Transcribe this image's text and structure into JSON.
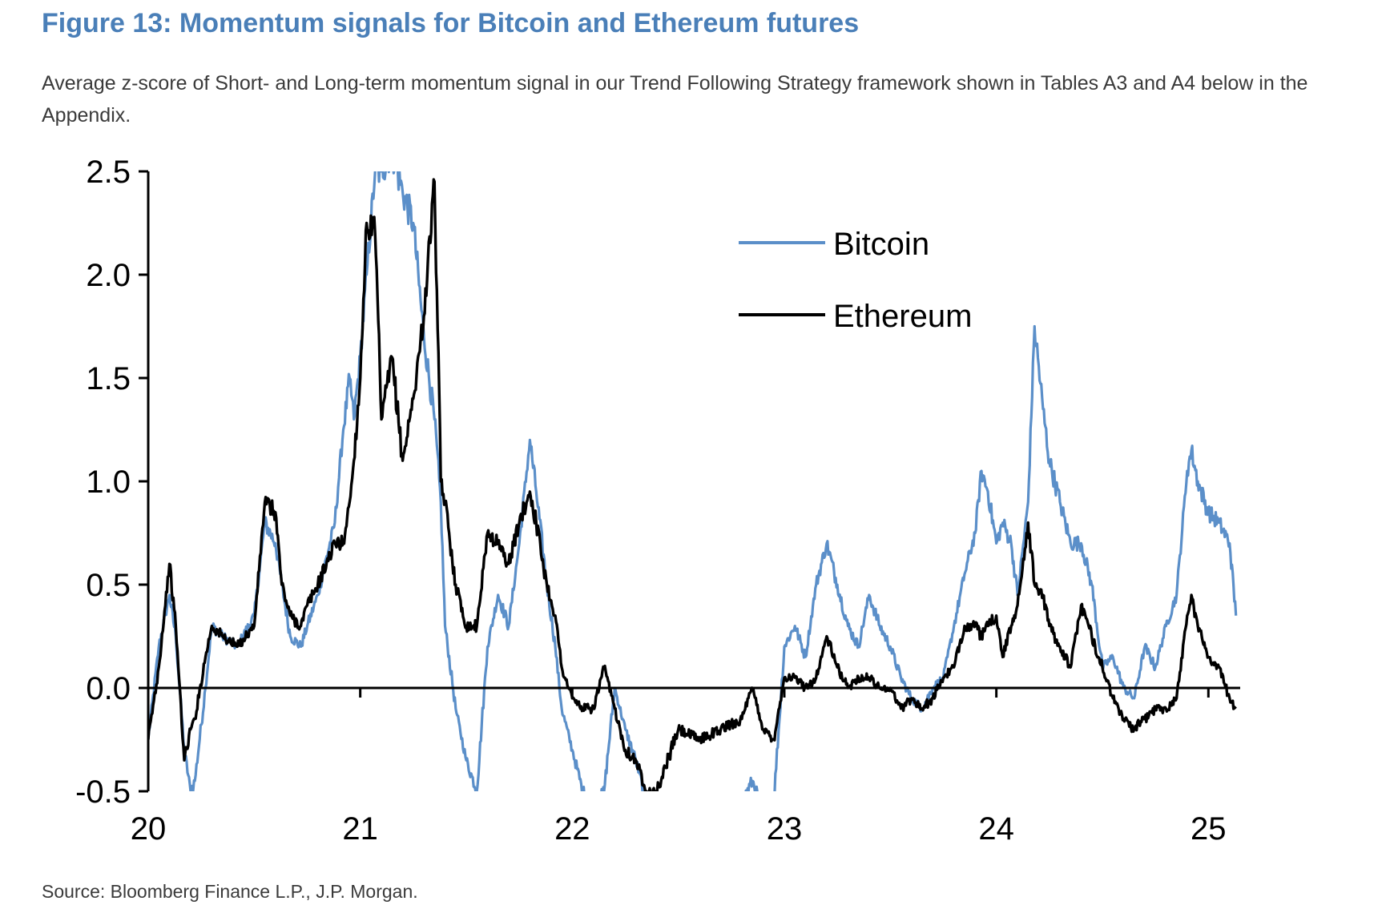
{
  "figure": {
    "title": "Figure 13: Momentum signals for Bitcoin and Ethereum futures",
    "subtitle": "Average z-score of Short- and Long-term momentum signal in our Trend Following Strategy framework shown in Tables A3 and A4 below in the Appendix.",
    "source": "Source: Bloomberg Finance L.P., J.P. Morgan."
  },
  "colors": {
    "bitcoin": "#5b8fc9",
    "ethereum": "#000000",
    "axis": "#000000"
  },
  "chart_data": {
    "type": "line",
    "title": "",
    "xlabel": "",
    "ylabel": "",
    "xlim": [
      20,
      25.15
    ],
    "ylim": [
      -0.5,
      2.5
    ],
    "y_ticks": [
      "-0.5",
      "0.0",
      "0.5",
      "1.0",
      "1.5",
      "2.0",
      "2.5"
    ],
    "x_ticks": [
      "20",
      "21",
      "22",
      "23",
      "24",
      "25"
    ],
    "grid": false,
    "legend_position": "top-right",
    "series": [
      {
        "name": "Bitcoin",
        "color": "#5b8fc9",
        "x": [
          20.0,
          20.05,
          20.1,
          20.13,
          20.17,
          20.2,
          20.22,
          20.27,
          20.3,
          20.35,
          20.42,
          20.5,
          20.55,
          20.6,
          20.63,
          20.67,
          20.72,
          20.75,
          20.8,
          20.88,
          20.92,
          20.95,
          20.97,
          21.0,
          21.03,
          21.07,
          21.1,
          21.15,
          21.2,
          21.25,
          21.3,
          21.35,
          21.38,
          21.4,
          21.45,
          21.5,
          21.55,
          21.6,
          21.65,
          21.7,
          21.75,
          21.8,
          21.83,
          21.88,
          21.92,
          21.95,
          22.0,
          22.05,
          22.1,
          22.15,
          22.2,
          22.25,
          22.3,
          22.35,
          22.4,
          22.5,
          22.6,
          22.7,
          22.8,
          22.85,
          22.9,
          22.95,
          23.0,
          23.05,
          23.1,
          23.15,
          23.2,
          23.25,
          23.3,
          23.35,
          23.4,
          23.45,
          23.5,
          23.55,
          23.6,
          23.65,
          23.7,
          23.75,
          23.8,
          23.85,
          23.9,
          23.93,
          23.96,
          24.0,
          24.03,
          24.07,
          24.1,
          24.15,
          24.18,
          24.22,
          24.25,
          24.3,
          24.35,
          24.4,
          24.45,
          24.5,
          24.55,
          24.6,
          24.65,
          24.7,
          24.75,
          24.8,
          24.85,
          24.9,
          24.92,
          24.95,
          25.0,
          25.05,
          25.1,
          25.13
        ],
        "values": [
          -0.25,
          0.2,
          0.45,
          0.25,
          -0.3,
          -0.5,
          -0.45,
          0.0,
          0.3,
          0.25,
          0.2,
          0.35,
          0.8,
          0.7,
          0.5,
          0.25,
          0.2,
          0.3,
          0.45,
          0.8,
          1.25,
          1.5,
          1.3,
          1.6,
          2.0,
          2.5,
          2.5,
          2.6,
          2.4,
          2.25,
          1.7,
          1.3,
          0.9,
          0.3,
          -0.1,
          -0.35,
          -0.5,
          0.2,
          0.45,
          0.3,
          0.7,
          1.2,
          0.95,
          0.5,
          0.2,
          -0.1,
          -0.3,
          -0.5,
          -0.6,
          -0.5,
          0.0,
          -0.2,
          -0.35,
          -0.55,
          -0.6,
          -0.6,
          -0.6,
          -0.6,
          -0.55,
          -0.45,
          -0.6,
          -0.55,
          0.2,
          0.3,
          0.15,
          0.5,
          0.7,
          0.5,
          0.3,
          0.2,
          0.45,
          0.3,
          0.2,
          0.05,
          -0.05,
          -0.1,
          0.0,
          0.05,
          0.3,
          0.55,
          0.75,
          1.05,
          0.95,
          0.7,
          0.8,
          0.7,
          0.45,
          0.9,
          1.75,
          1.35,
          1.1,
          0.9,
          0.7,
          0.7,
          0.5,
          0.1,
          0.15,
          0.0,
          -0.05,
          0.2,
          0.1,
          0.3,
          0.45,
          1.05,
          1.15,
          1.0,
          0.85,
          0.8,
          0.7,
          0.35
        ]
      },
      {
        "name": "Ethereum",
        "color": "#000000",
        "x": [
          20.0,
          20.05,
          20.1,
          20.13,
          20.17,
          20.2,
          20.22,
          20.27,
          20.3,
          20.35,
          20.42,
          20.5,
          20.55,
          20.6,
          20.63,
          20.67,
          20.72,
          20.75,
          20.8,
          20.88,
          20.92,
          20.95,
          20.97,
          21.0,
          21.03,
          21.07,
          21.1,
          21.15,
          21.2,
          21.25,
          21.3,
          21.35,
          21.38,
          21.4,
          21.45,
          21.5,
          21.55,
          21.6,
          21.65,
          21.7,
          21.75,
          21.8,
          21.83,
          21.88,
          21.92,
          21.95,
          22.0,
          22.05,
          22.1,
          22.15,
          22.2,
          22.25,
          22.3,
          22.35,
          22.4,
          22.5,
          22.6,
          22.7,
          22.8,
          22.85,
          22.9,
          22.95,
          23.0,
          23.05,
          23.1,
          23.15,
          23.2,
          23.25,
          23.3,
          23.35,
          23.4,
          23.45,
          23.5,
          23.55,
          23.6,
          23.65,
          23.7,
          23.75,
          23.8,
          23.85,
          23.9,
          23.93,
          23.96,
          24.0,
          24.03,
          24.07,
          24.1,
          24.15,
          24.18,
          24.22,
          24.25,
          24.3,
          24.35,
          24.4,
          24.45,
          24.5,
          24.55,
          24.6,
          24.65,
          24.7,
          24.75,
          24.8,
          24.85,
          24.9,
          24.92,
          24.95,
          25.0,
          25.05,
          25.1,
          25.13
        ],
        "values": [
          -0.25,
          0.1,
          0.6,
          0.3,
          -0.35,
          -0.2,
          -0.15,
          0.15,
          0.3,
          0.25,
          0.2,
          0.3,
          0.9,
          0.85,
          0.5,
          0.35,
          0.3,
          0.4,
          0.5,
          0.7,
          0.7,
          0.9,
          1.1,
          1.5,
          2.25,
          2.2,
          1.3,
          1.6,
          1.1,
          1.4,
          1.8,
          2.45,
          1.0,
          0.9,
          0.5,
          0.3,
          0.3,
          0.75,
          0.7,
          0.6,
          0.8,
          0.95,
          0.8,
          0.5,
          0.35,
          0.1,
          -0.05,
          -0.1,
          -0.1,
          0.1,
          -0.1,
          -0.3,
          -0.35,
          -0.5,
          -0.5,
          -0.2,
          -0.25,
          -0.2,
          -0.15,
          0.0,
          -0.2,
          -0.25,
          0.05,
          0.05,
          0.0,
          0.05,
          0.25,
          0.1,
          0.0,
          0.05,
          0.05,
          0.0,
          0.0,
          -0.1,
          -0.05,
          -0.1,
          -0.05,
          0.05,
          0.1,
          0.3,
          0.3,
          0.25,
          0.3,
          0.35,
          0.15,
          0.3,
          0.4,
          0.8,
          0.5,
          0.45,
          0.3,
          0.2,
          0.1,
          0.4,
          0.25,
          0.1,
          -0.05,
          -0.15,
          -0.2,
          -0.15,
          -0.1,
          -0.1,
          -0.05,
          0.35,
          0.45,
          0.3,
          0.15,
          0.1,
          -0.05,
          -0.1
        ]
      }
    ]
  }
}
